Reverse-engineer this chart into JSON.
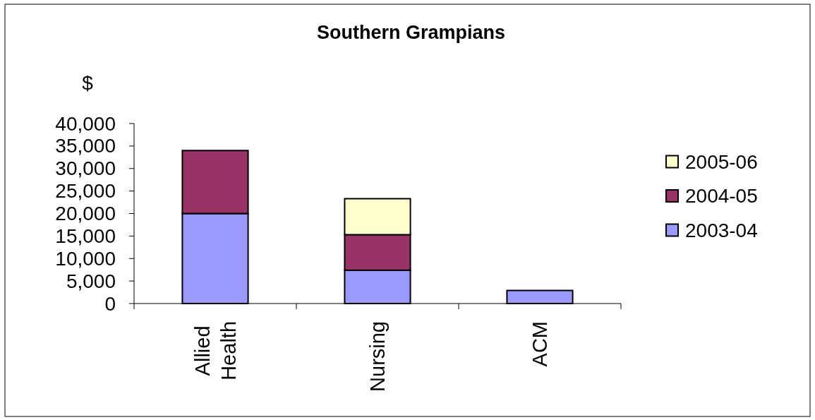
{
  "chart_data": {
    "type": "bar",
    "title": "Southern Grampians",
    "ylabel": "$",
    "categories": [
      "Allied Health",
      "Nursing",
      "ACM"
    ],
    "series": [
      {
        "name": "2003-04",
        "color": "#9999ff",
        "values": [
          20000,
          7400,
          2900
        ]
      },
      {
        "name": "2004-05",
        "color": "#993366",
        "values": [
          14000,
          7900,
          null
        ]
      },
      {
        "name": "2005-06",
        "color": "#ffffcc",
        "values": [
          null,
          8000,
          null
        ]
      }
    ],
    "stacked": true,
    "ylim": [
      0,
      40000
    ],
    "yticks": [
      0,
      {
        "value": 5000,
        "label": "5,000"
      },
      {
        "value": 10000,
        "label": "10,000"
      },
      {
        "value": 15000,
        "label": "15,000"
      },
      {
        "value": 20000,
        "label": "20,000"
      },
      {
        "value": 25000,
        "label": "25,000"
      },
      {
        "value": 30000,
        "label": "30,000"
      },
      {
        "value": 35000,
        "label": "35,000"
      },
      {
        "value": 40000,
        "label": "40,000"
      }
    ],
    "legend": "right"
  }
}
